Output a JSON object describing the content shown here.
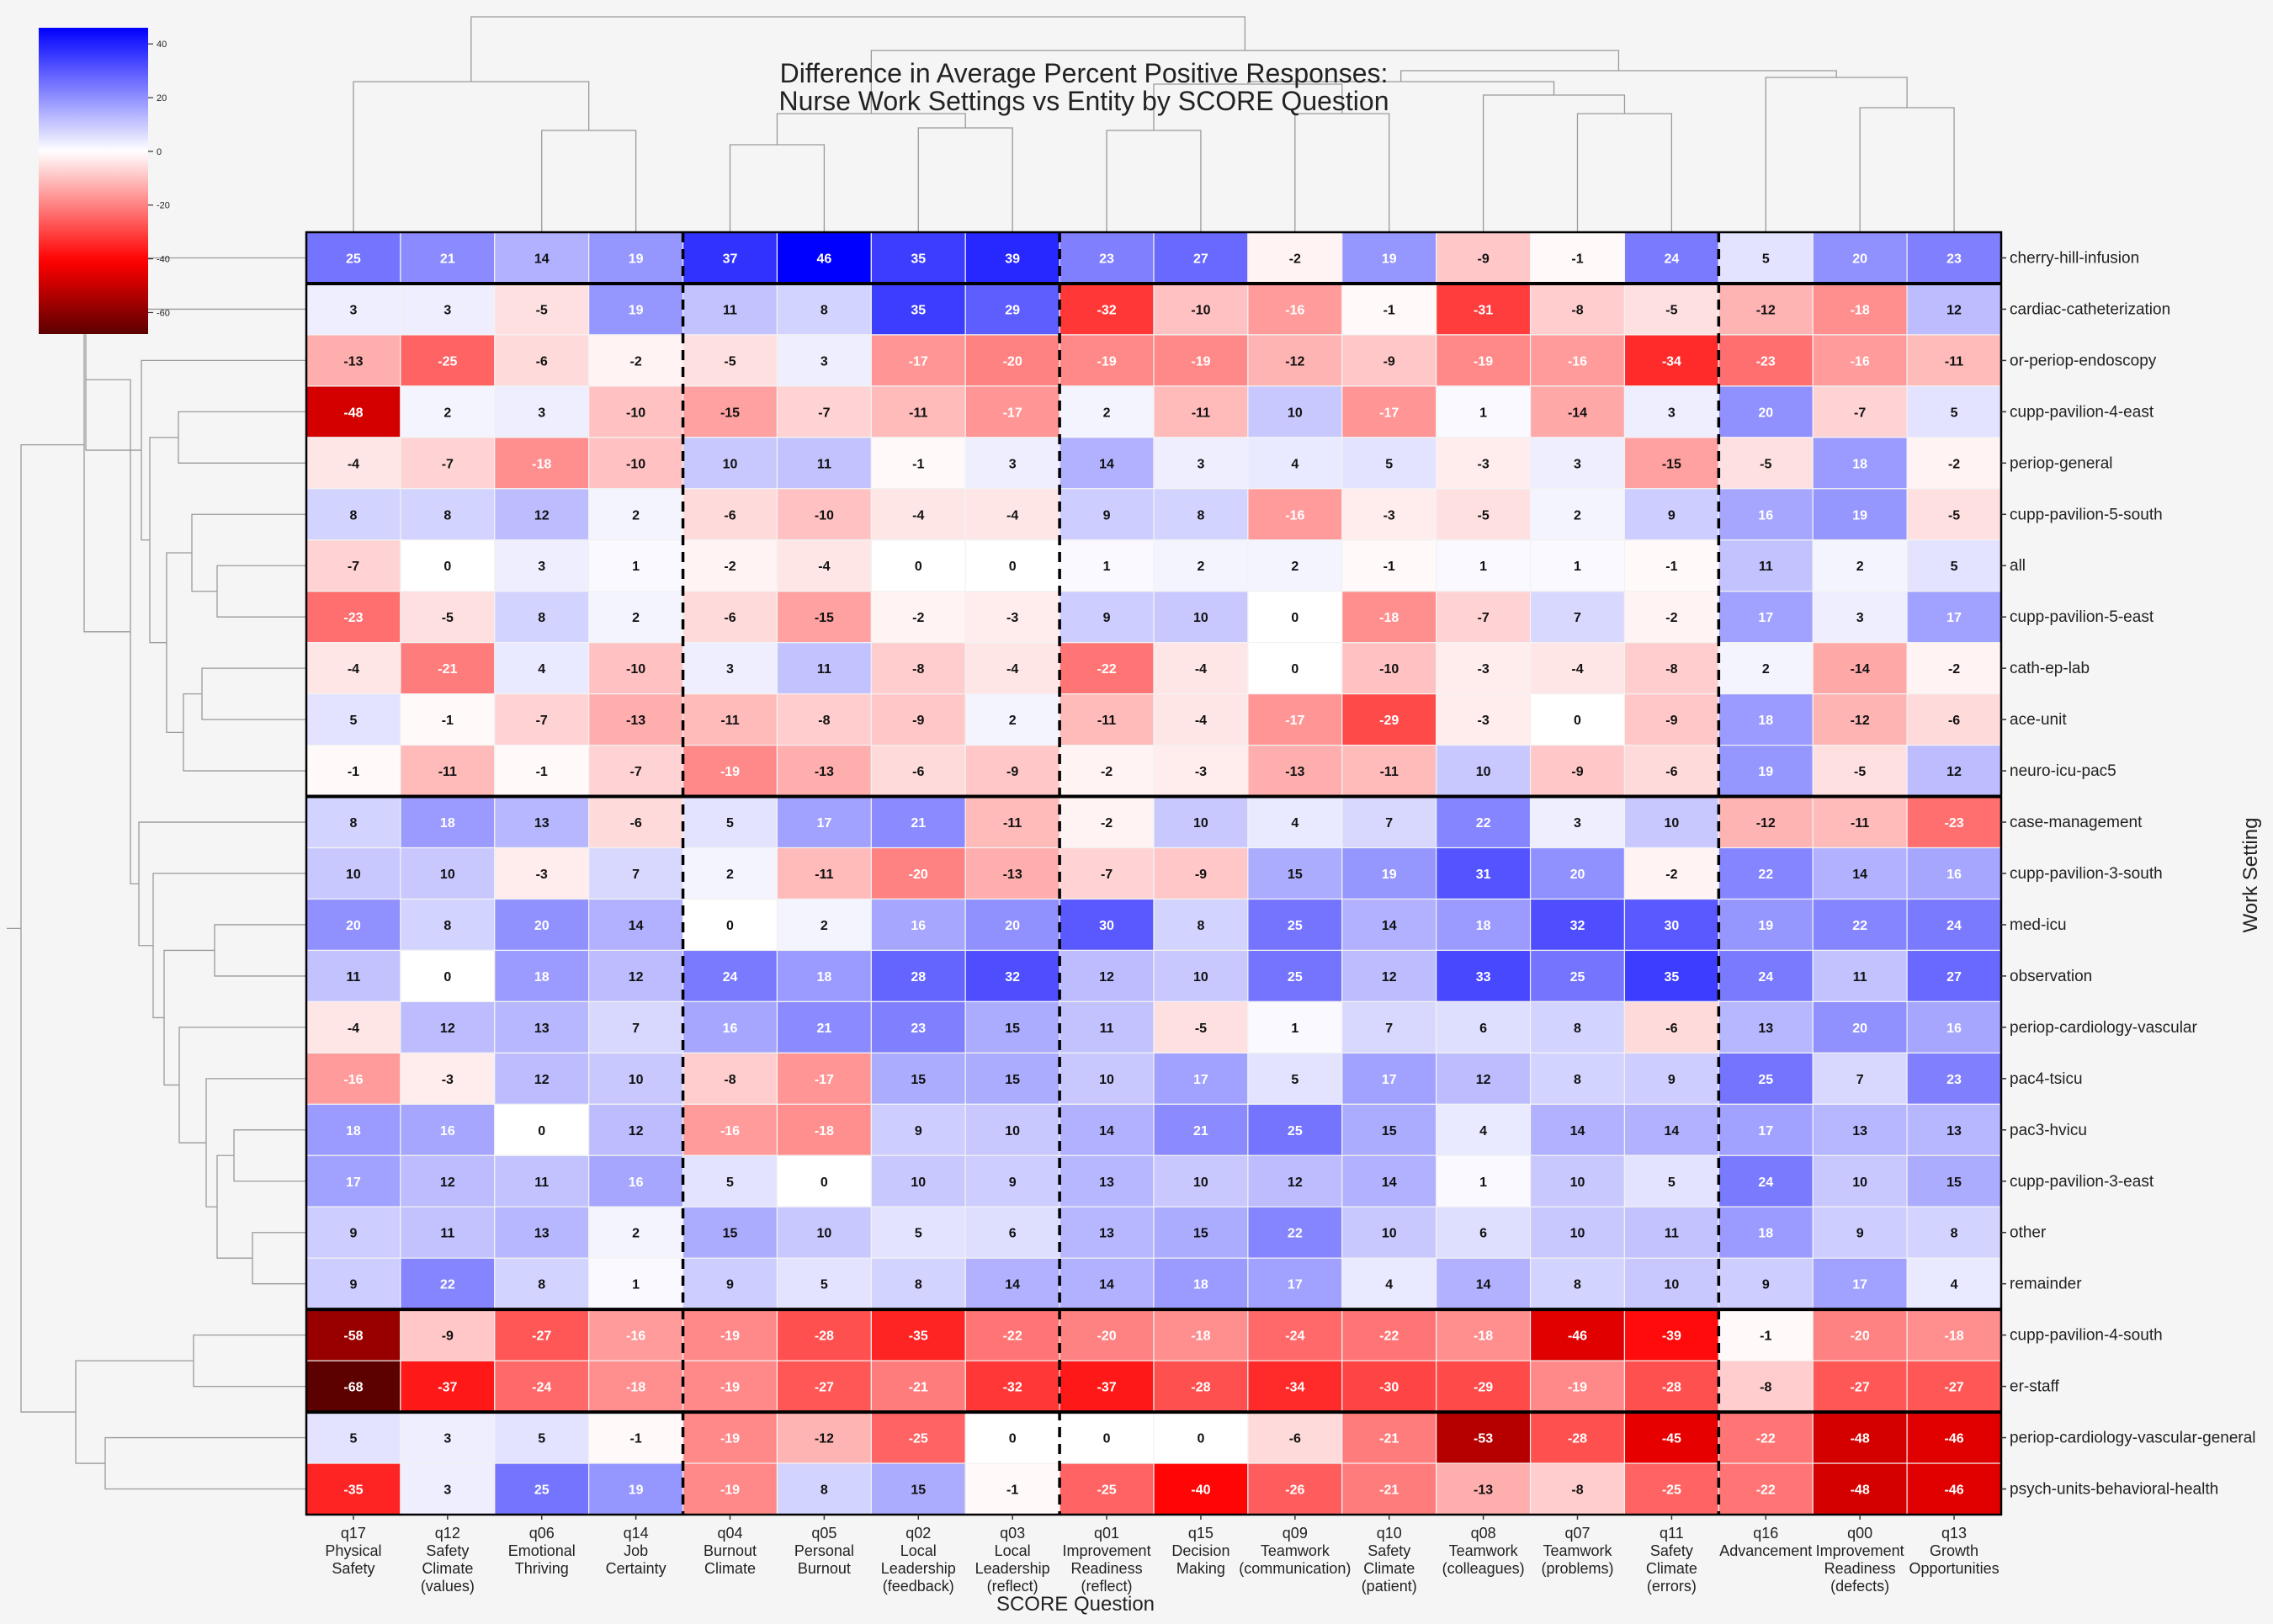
{
  "chart_data": {
    "type": "heatmap",
    "title": "Difference in Average Percent Positive Responses:",
    "subtitle": "Nurse Work Settings vs Entity by SCORE Question",
    "xlabel": "SCORE Question",
    "ylabel": "Work Setting",
    "colorbar": {
      "range": [
        -68,
        46
      ],
      "ticks": [
        "40",
        "20",
        "0",
        "-20",
        "-40",
        "-60"
      ],
      "colors": {
        "negative_extreme": "#5c0000",
        "negative": "#ff0000",
        "zero": "#ffffff",
        "positive": "#0000ff"
      }
    },
    "columns": [
      {
        "id": "q17",
        "label": [
          "q17",
          "Physical",
          "Safety"
        ]
      },
      {
        "id": "q12",
        "label": [
          "q12",
          "Safety",
          "Climate",
          "(values)"
        ]
      },
      {
        "id": "q06",
        "label": [
          "q06",
          "Emotional",
          "Thriving"
        ]
      },
      {
        "id": "q14",
        "label": [
          "q14",
          "Job",
          "Certainty"
        ]
      },
      {
        "id": "q04",
        "label": [
          "q04",
          "Burnout",
          "Climate"
        ]
      },
      {
        "id": "q05",
        "label": [
          "q05",
          "Personal",
          "Burnout"
        ]
      },
      {
        "id": "q02",
        "label": [
          "q02",
          "Local",
          "Leadership",
          "(feedback)"
        ]
      },
      {
        "id": "q03",
        "label": [
          "q03",
          "Local",
          "Leadership",
          "(reflect)"
        ]
      },
      {
        "id": "q01",
        "label": [
          "q01",
          "Improvement",
          "Readiness",
          "(reflect)"
        ]
      },
      {
        "id": "q15",
        "label": [
          "q15",
          "Decision",
          "Making"
        ]
      },
      {
        "id": "q09",
        "label": [
          "q09",
          "Teamwork",
          "(communication)"
        ]
      },
      {
        "id": "q10",
        "label": [
          "q10",
          "Safety",
          "Climate",
          "(patient)"
        ]
      },
      {
        "id": "q08",
        "label": [
          "q08",
          "Teamwork",
          "(colleagues)"
        ]
      },
      {
        "id": "q07",
        "label": [
          "q07",
          "Teamwork",
          "(problems)"
        ]
      },
      {
        "id": "q11",
        "label": [
          "q11",
          "Safety",
          "Climate",
          "(errors)"
        ]
      },
      {
        "id": "q16",
        "label": [
          "q16",
          "Advancement"
        ]
      },
      {
        "id": "q00",
        "label": [
          "q00",
          "Improvement",
          "Readiness",
          "(defects)"
        ]
      },
      {
        "id": "q13",
        "label": [
          "q13",
          "Growth",
          "Opportunities"
        ]
      }
    ],
    "rows": [
      "cherry-hill-infusion",
      "cardiac-catheterization",
      "or-periop-endoscopy",
      "cupp-pavilion-4-east",
      "periop-general",
      "cupp-pavilion-5-south",
      "all",
      "cupp-pavilion-5-east",
      "cath-ep-lab",
      "ace-unit",
      "neuro-icu-pac5",
      "case-management",
      "cupp-pavilion-3-south",
      "med-icu",
      "observation",
      "periop-cardiology-vascular",
      "pac4-tsicu",
      "pac3-hvicu",
      "cupp-pavilion-3-east",
      "other",
      "remainder",
      "cupp-pavilion-4-south",
      "er-staff",
      "periop-cardiology-vascular-general",
      "psych-units-behavioral-health"
    ],
    "values": [
      [
        25,
        21,
        14,
        19,
        37,
        46,
        35,
        39,
        23,
        27,
        -2,
        19,
        -9,
        -1,
        24,
        5,
        20,
        23
      ],
      [
        3,
        3,
        -5,
        19,
        11,
        8,
        35,
        29,
        -32,
        -10,
        -16,
        -1,
        -31,
        -8,
        -5,
        -12,
        -18,
        12
      ],
      [
        -13,
        -25,
        -6,
        -2,
        -5,
        3,
        -17,
        -20,
        -19,
        -19,
        -12,
        -9,
        -19,
        -16,
        -34,
        -23,
        -16,
        -11
      ],
      [
        -48,
        2,
        3,
        -10,
        -15,
        -7,
        -11,
        -17,
        2,
        -11,
        10,
        -17,
        1,
        -14,
        3,
        20,
        -7,
        5
      ],
      [
        -4,
        -7,
        -18,
        -10,
        10,
        11,
        -1,
        3,
        14,
        3,
        4,
        5,
        -3,
        3,
        -15,
        -5,
        18,
        -2
      ],
      [
        8,
        8,
        12,
        2,
        -6,
        -10,
        -4,
        -4,
        9,
        8,
        -16,
        -3,
        -5,
        2,
        9,
        16,
        19,
        -5
      ],
      [
        -7,
        0,
        3,
        1,
        -2,
        -4,
        0,
        0,
        1,
        2,
        2,
        -1,
        1,
        1,
        -1,
        11,
        2,
        5
      ],
      [
        -23,
        -5,
        8,
        2,
        -6,
        -15,
        -2,
        -3,
        9,
        10,
        0,
        -18,
        -7,
        7,
        -2,
        17,
        3,
        17
      ],
      [
        -4,
        -21,
        4,
        -10,
        3,
        11,
        -8,
        -4,
        -22,
        -4,
        0,
        -10,
        -3,
        -4,
        -8,
        2,
        -14,
        -2
      ],
      [
        5,
        -1,
        -7,
        -13,
        -11,
        -8,
        -9,
        2,
        -11,
        -4,
        -17,
        -29,
        -3,
        0,
        -9,
        18,
        -12,
        -6
      ],
      [
        -1,
        -11,
        -1,
        -7,
        -19,
        -13,
        -6,
        -9,
        -2,
        -3,
        -13,
        -11,
        10,
        -9,
        -6,
        19,
        -5,
        12
      ],
      [
        8,
        18,
        13,
        -6,
        5,
        17,
        21,
        -11,
        -2,
        10,
        4,
        7,
        22,
        3,
        10,
        -12,
        -11,
        -23
      ],
      [
        10,
        10,
        -3,
        7,
        2,
        -11,
        -20,
        -13,
        -7,
        -9,
        15,
        19,
        31,
        20,
        -2,
        22,
        14,
        16
      ],
      [
        20,
        8,
        20,
        14,
        0,
        2,
        16,
        20,
        30,
        8,
        25,
        14,
        18,
        32,
        30,
        19,
        22,
        24
      ],
      [
        11,
        0,
        18,
        12,
        24,
        18,
        28,
        32,
        12,
        10,
        25,
        12,
        33,
        25,
        35,
        24,
        11,
        27
      ],
      [
        -4,
        12,
        13,
        7,
        16,
        21,
        23,
        15,
        11,
        -5,
        1,
        7,
        6,
        8,
        -6,
        13,
        20,
        16
      ],
      [
        -16,
        -3,
        12,
        10,
        -8,
        -17,
        15,
        15,
        10,
        17,
        5,
        17,
        12,
        8,
        9,
        25,
        7,
        23
      ],
      [
        18,
        16,
        0,
        12,
        -16,
        -18,
        9,
        10,
        14,
        21,
        25,
        15,
        4,
        14,
        14,
        17,
        13,
        13
      ],
      [
        17,
        12,
        11,
        16,
        5,
        0,
        10,
        9,
        13,
        10,
        12,
        14,
        1,
        10,
        5,
        24,
        10,
        15
      ],
      [
        9,
        11,
        13,
        2,
        15,
        10,
        5,
        6,
        13,
        15,
        22,
        10,
        6,
        10,
        11,
        18,
        9,
        8
      ],
      [
        9,
        22,
        8,
        1,
        9,
        5,
        8,
        14,
        14,
        18,
        17,
        4,
        14,
        8,
        10,
        9,
        17,
        4
      ],
      [
        -58,
        -9,
        -27,
        -16,
        -19,
        -28,
        -35,
        -22,
        -20,
        -18,
        -24,
        -22,
        -18,
        -46,
        -39,
        -1,
        -20,
        -18
      ],
      [
        -68,
        -37,
        -24,
        -18,
        -19,
        -27,
        -21,
        -32,
        -37,
        -28,
        -34,
        -30,
        -29,
        -19,
        -28,
        -8,
        -27,
        -27
      ],
      [
        5,
        3,
        5,
        -1,
        -19,
        -12,
        -25,
        0,
        0,
        0,
        -6,
        -21,
        -53,
        -28,
        -45,
        -22,
        -48,
        -46
      ],
      [
        -35,
        3,
        25,
        19,
        -19,
        8,
        15,
        -1,
        -25,
        -40,
        -26,
        -21,
        -13,
        -8,
        -25,
        -22,
        -48,
        -46
      ]
    ],
    "row_group_breaks": [
      1,
      11,
      21,
      23
    ],
    "column_group_breaks": [
      4,
      8,
      15
    ],
    "grid": false,
    "legend": "colorbar top-left"
  }
}
